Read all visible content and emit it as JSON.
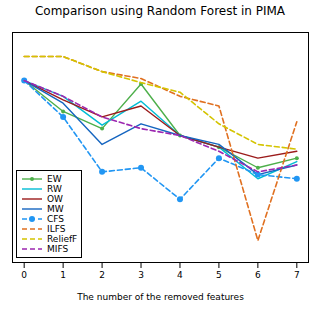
{
  "chart_data": {
    "type": "line",
    "title": "Comparison using Random Forest in PIMA",
    "xlabel": "The number of the removed features",
    "x": [
      0,
      1,
      2,
      3,
      4,
      5,
      6,
      7
    ],
    "series": [
      {
        "name": "EW",
        "color": "#4daf4a",
        "line_style": "solid",
        "marker": "circle",
        "values": [
          0.765,
          0.72,
          0.695,
          0.76,
          0.685,
          0.668,
          0.638,
          0.652
        ]
      },
      {
        "name": "RW",
        "color": "#00bcd4",
        "line_style": "solid",
        "values": [
          0.765,
          0.742,
          0.7,
          0.735,
          0.685,
          0.668,
          0.622,
          0.647
        ]
      },
      {
        "name": "OW",
        "color": "#9b1b1b",
        "line_style": "solid",
        "values": [
          0.765,
          0.737,
          0.712,
          0.728,
          0.685,
          0.668,
          0.652,
          0.662
        ]
      },
      {
        "name": "MW",
        "color": "#1565c0",
        "line_style": "solid",
        "values": [
          0.765,
          0.732,
          0.672,
          0.702,
          0.685,
          0.672,
          0.628,
          0.642
        ]
      },
      {
        "name": "CFS",
        "color": "#2196f3",
        "line_style": "dashed",
        "marker": "circle",
        "values": [
          0.765,
          0.712,
          0.632,
          0.638,
          0.592,
          0.652,
          0.628,
          0.622
        ]
      },
      {
        "name": "ILFS",
        "color": "#e07020",
        "line_style": "dashed",
        "values": [
          0.8,
          0.8,
          0.778,
          0.768,
          0.742,
          0.728,
          0.532,
          0.705
        ]
      },
      {
        "name": "ReliefF",
        "color": "#d4c400",
        "line_style": "dashed",
        "values": [
          0.8,
          0.8,
          0.778,
          0.762,
          0.748,
          0.702,
          0.672,
          0.665
        ]
      },
      {
        "name": "MIFS",
        "color": "#9c27b0",
        "line_style": "dashed",
        "values": [
          0.765,
          0.742,
          0.712,
          0.695,
          0.685,
          0.662,
          0.632,
          0.642
        ]
      }
    ],
    "xlim": [
      -0.3,
      7.3
    ],
    "ylim": [
      0.5,
      0.835
    ],
    "xticks": [
      0,
      1,
      2,
      3,
      4,
      5,
      6,
      7
    ],
    "tick_labels": "x",
    "legend": "lower left"
  }
}
